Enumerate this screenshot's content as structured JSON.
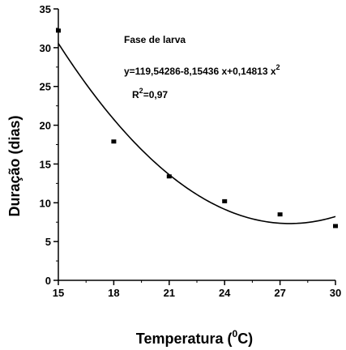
{
  "chart_data": {
    "type": "scatter",
    "title": "",
    "xlabel": "Temperatura (ºC)",
    "xlabel_parts": {
      "base": "Temperatura (",
      "sup": "0",
      "end": "C)"
    },
    "ylabel": "Duração (dias)",
    "xlim": [
      15,
      30
    ],
    "ylim": [
      0,
      35
    ],
    "xticks": [
      15,
      18,
      21,
      24,
      27,
      30
    ],
    "xtick_labels": [
      "15",
      "18",
      "21",
      "24",
      "27",
      "30"
    ],
    "yticks": [
      0,
      5,
      10,
      15,
      20,
      25,
      30,
      35
    ],
    "ytick_labels": [
      "0",
      "5",
      "10",
      "15",
      "20",
      "25",
      "30",
      "35"
    ],
    "grid": false,
    "series": [
      {
        "points": [
          {
            "x": 15,
            "y": 32.2
          },
          {
            "x": 18,
            "y": 17.9
          },
          {
            "x": 21,
            "y": 13.4
          },
          {
            "x": 24,
            "y": 10.2
          },
          {
            "x": 27,
            "y": 8.5
          },
          {
            "x": 30,
            "y": 7.0
          }
        ]
      }
    ],
    "fit": {
      "type": "quadratic",
      "coefficients": [
        119.54286,
        -8.15436,
        0.14813
      ]
    },
    "annotations": {
      "phase": "Fase de larva",
      "equation_main": "y=119,54286-8,15436 x+0,14813 x",
      "equation_exp": "2",
      "r2_prefix": "R",
      "r2_exp": "2",
      "r2_value": "=0,97"
    }
  }
}
